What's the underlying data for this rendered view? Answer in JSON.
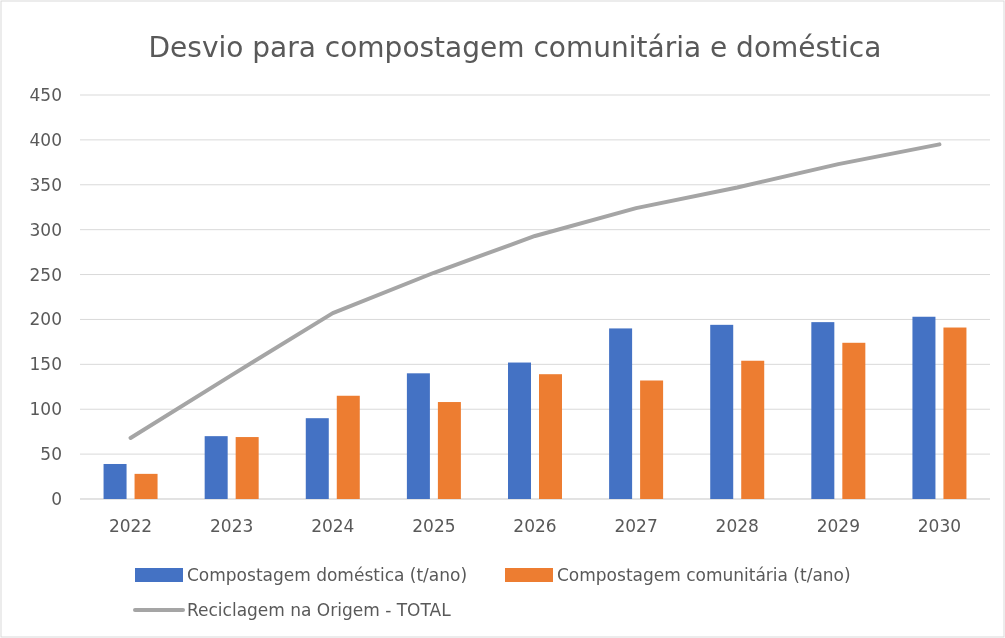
{
  "chart_data": {
    "type": "bar",
    "title": "Desvio para compostagem comunitária e doméstica",
    "categories": [
      "2022",
      "2023",
      "2024",
      "2025",
      "2026",
      "2027",
      "2028",
      "2029",
      "2030"
    ],
    "series": [
      {
        "name": "Compostagem doméstica (t/ano)",
        "color": "#4472c4",
        "values": [
          39,
          70,
          90,
          140,
          152,
          190,
          194,
          197,
          203
        ]
      },
      {
        "name": "Compostagem comunitária (t/ano)",
        "color": "#ed7d31",
        "values": [
          28,
          69,
          115,
          108,
          139,
          132,
          154,
          174,
          191
        ]
      },
      {
        "name": "Reciclagem na Origem - TOTAL",
        "type": "line",
        "color": "#a5a5a5",
        "values": [
          68,
          138,
          207,
          252,
          293,
          324,
          347,
          373,
          395
        ]
      }
    ],
    "ylim": [
      0,
      450
    ],
    "yticks": [
      0,
      50,
      100,
      150,
      200,
      250,
      300,
      350,
      400,
      450
    ],
    "grid": "y",
    "legend": "bottom"
  }
}
